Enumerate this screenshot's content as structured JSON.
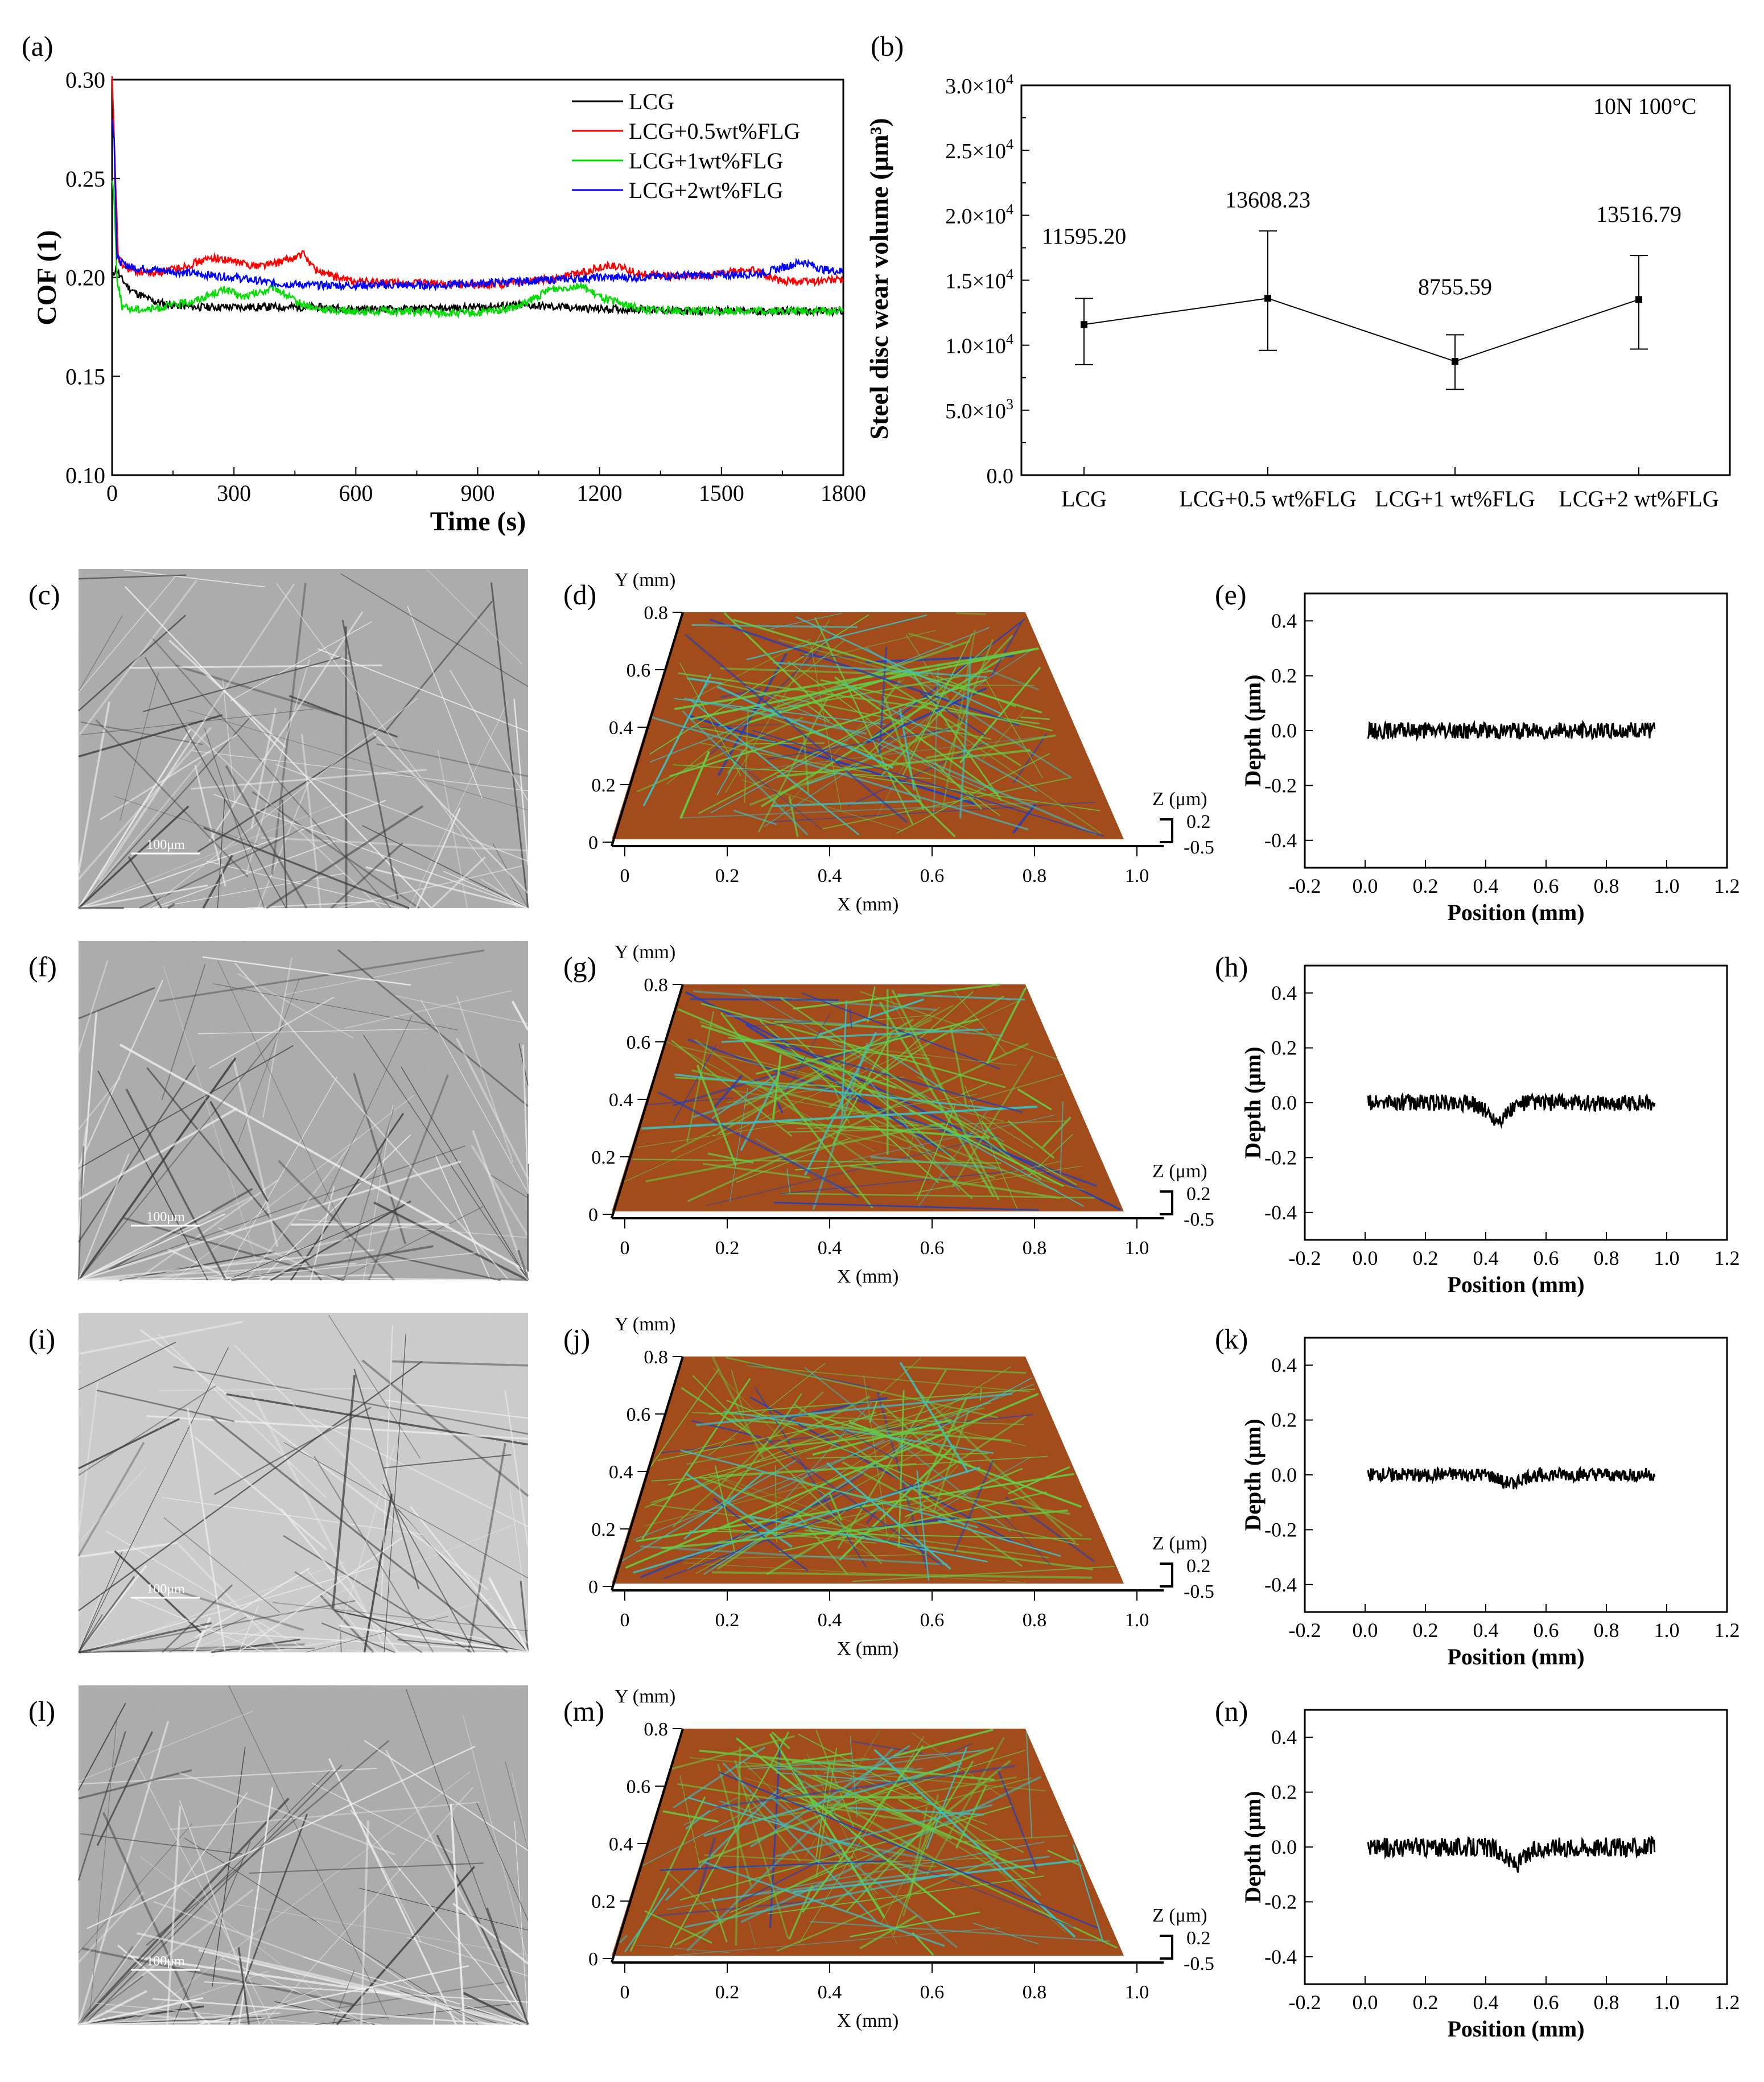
{
  "figure": {
    "panel_labels": [
      "(a)",
      "(b)",
      "(c)",
      "(d)",
      "(e)",
      "(f)",
      "(g)",
      "(h)",
      "(i)",
      "(j)",
      "(k)",
      "(l)",
      "(m)",
      "(n)"
    ],
    "scale_bar_label": "100μm",
    "annotation_b": "10N 100°C"
  },
  "chart_data": [
    {
      "id": "a",
      "type": "line",
      "xlabel": "Time (s)",
      "ylabel": "COF (1)",
      "xlim": [
        0,
        1800
      ],
      "ylim": [
        0.1,
        0.3
      ],
      "xticks": [
        "0",
        "300",
        "600",
        "900",
        "1200",
        "1500",
        "1800"
      ],
      "yticks": [
        "0.10",
        "0.15",
        "0.20",
        "0.25",
        "0.30"
      ],
      "legend_position": "top-right",
      "series": [
        {
          "name": "LCG",
          "color": "#000000",
          "x": [
            0,
            10,
            20,
            40,
            60,
            80,
            100,
            150,
            200,
            300,
            400,
            500,
            600,
            700,
            800,
            900,
            1000,
            1100,
            1200,
            1300,
            1400,
            1500,
            1600,
            1700,
            1800
          ],
          "y": [
            0.2,
            0.205,
            0.2,
            0.195,
            0.192,
            0.19,
            0.188,
            0.186,
            0.185,
            0.185,
            0.185,
            0.185,
            0.184,
            0.184,
            0.184,
            0.185,
            0.186,
            0.185,
            0.184,
            0.184,
            0.183,
            0.183,
            0.183,
            0.183,
            0.183
          ]
        },
        {
          "name": "LCG+0.5wt%FLG",
          "color": "#ff0000",
          "x": [
            0,
            5,
            15,
            30,
            60,
            100,
            150,
            200,
            250,
            300,
            350,
            400,
            450,
            470,
            500,
            550,
            600,
            700,
            800,
            900,
            1000,
            1100,
            1200,
            1230,
            1300,
            1400,
            1500,
            1570,
            1650,
            1700,
            1800
          ],
          "y": [
            0.3,
            0.27,
            0.21,
            0.205,
            0.203,
            0.202,
            0.204,
            0.207,
            0.21,
            0.208,
            0.206,
            0.207,
            0.21,
            0.212,
            0.204,
            0.2,
            0.198,
            0.197,
            0.197,
            0.196,
            0.197,
            0.2,
            0.205,
            0.206,
            0.202,
            0.2,
            0.202,
            0.204,
            0.198,
            0.198,
            0.199
          ]
        },
        {
          "name": "LCG+1wt%FLG",
          "color": "#00dd00",
          "x": [
            0,
            5,
            12,
            25,
            50,
            100,
            150,
            200,
            250,
            280,
            320,
            360,
            400,
            450,
            500,
            600,
            700,
            800,
            900,
            1000,
            1080,
            1150,
            1200,
            1300,
            1400,
            1500,
            1600,
            1700,
            1800
          ],
          "y": [
            0.25,
            0.24,
            0.2,
            0.185,
            0.184,
            0.184,
            0.186,
            0.188,
            0.192,
            0.194,
            0.19,
            0.192,
            0.195,
            0.188,
            0.184,
            0.183,
            0.183,
            0.182,
            0.182,
            0.185,
            0.194,
            0.196,
            0.19,
            0.184,
            0.183,
            0.183,
            0.183,
            0.183,
            0.183
          ]
        },
        {
          "name": "LCG+2wt%FLG",
          "color": "#0000ff",
          "x": [
            0,
            5,
            12,
            25,
            50,
            100,
            150,
            200,
            300,
            400,
            500,
            600,
            700,
            800,
            900,
            1000,
            1100,
            1200,
            1300,
            1400,
            1500,
            1600,
            1650,
            1700,
            1750,
            1800
          ],
          "y": [
            0.28,
            0.27,
            0.21,
            0.207,
            0.205,
            0.204,
            0.203,
            0.202,
            0.2,
            0.197,
            0.196,
            0.196,
            0.196,
            0.196,
            0.197,
            0.198,
            0.199,
            0.2,
            0.2,
            0.201,
            0.201,
            0.202,
            0.205,
            0.208,
            0.204,
            0.203
          ]
        }
      ]
    },
    {
      "id": "b",
      "type": "line",
      "xlabel": "",
      "ylabel": "Steel disc wear volume (μm³)",
      "ylim": [
        0,
        30000
      ],
      "yticks": [
        {
          "base": "0.0",
          "exp": ""
        },
        {
          "base": "5.0×10",
          "exp": "3"
        },
        {
          "base": "1.0×10",
          "exp": "4"
        },
        {
          "base": "1.5×10",
          "exp": "4"
        },
        {
          "base": "2.0×10",
          "exp": "4"
        },
        {
          "base": "2.5×10",
          "exp": "4"
        },
        {
          "base": "3.0×10",
          "exp": "4"
        }
      ],
      "categories": [
        "LCG",
        "LCG+0.5 wt%FLG",
        "LCG+1 wt%FLG",
        "LCG+2 wt%FLG"
      ],
      "values": [
        11595.2,
        13608.23,
        8755.59,
        13516.79
      ],
      "value_labels": [
        "11595.20",
        "13608.23",
        "8755.59",
        "13516.79"
      ],
      "error_low": [
        8500,
        9600,
        6600,
        9700
      ],
      "error_high": [
        13600,
        18800,
        10800,
        16900
      ]
    },
    {
      "id": "profiles",
      "type": "line",
      "xlabel": "Position (mm)",
      "ylabel": "Depth (μm)",
      "xlim": [
        -0.2,
        1.2
      ],
      "ylim": [
        -0.5,
        0.5
      ],
      "xticks": [
        "-0.2",
        "0.0",
        "0.2",
        "0.4",
        "0.6",
        "0.8",
        "1.0",
        "1.2"
      ],
      "yticks": [
        "-0.4",
        "-0.2",
        "0.0",
        "0.2",
        "0.4"
      ],
      "series": [
        {
          "panel": "e",
          "x_range": [
            0.01,
            0.96
          ],
          "noise": 0.03,
          "dip_center": 0.45,
          "dip_depth": 0.0
        },
        {
          "panel": "h",
          "x_range": [
            0.01,
            0.96
          ],
          "noise": 0.03,
          "dip_center": 0.44,
          "dip_depth": 0.06
        },
        {
          "panel": "k",
          "x_range": [
            0.01,
            0.96
          ],
          "noise": 0.025,
          "dip_center": 0.48,
          "dip_depth": 0.03
        },
        {
          "panel": "n",
          "x_range": [
            0.01,
            0.96
          ],
          "noise": 0.035,
          "dip_center": 0.5,
          "dip_depth": 0.06
        }
      ]
    },
    {
      "id": "surfaces3d",
      "type": "heatmap",
      "xlabel": "X (mm)",
      "ylabel": "Y (mm)",
      "zlabel": "Z (μm)",
      "xticks": [
        "0",
        "0.2",
        "0.4",
        "0.6",
        "0.8",
        "1.0"
      ],
      "yticks": [
        "0",
        "0.2",
        "0.4",
        "0.6",
        "0.8"
      ],
      "zticks": [
        "0.2",
        "-0.5"
      ],
      "colors": {
        "low": "#1f3fbf",
        "mid_low": "#3fbfbf",
        "mid": "#66cc44",
        "high": "#cc3311"
      }
    }
  ]
}
